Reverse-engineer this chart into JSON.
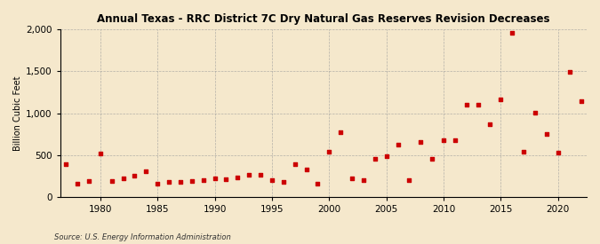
{
  "title": "Annual Texas - RRC District 7C Dry Natural Gas Reserves Revision Decreases",
  "ylabel": "Billion Cubic Feet",
  "source": "Source: U.S. Energy Information Administration",
  "xlim": [
    1976.5,
    2022.5
  ],
  "ylim": [
    0,
    2000
  ],
  "yticks": [
    0,
    500,
    1000,
    1500,
    2000
  ],
  "xticks": [
    1980,
    1985,
    1990,
    1995,
    2000,
    2005,
    2010,
    2015,
    2020
  ],
  "background_color": "#f5e8cc",
  "marker_color": "#cc0000",
  "data": {
    "years": [
      1977,
      1978,
      1979,
      1980,
      1981,
      1982,
      1983,
      1984,
      1985,
      1986,
      1987,
      1988,
      1989,
      1990,
      1991,
      1992,
      1993,
      1994,
      1995,
      1996,
      1997,
      1998,
      1999,
      2000,
      2001,
      2002,
      2003,
      2004,
      2005,
      2006,
      2007,
      2008,
      2009,
      2010,
      2011,
      2012,
      2013,
      2014,
      2015,
      2016,
      2017,
      2018,
      2019,
      2020,
      2021,
      2022
    ],
    "values": [
      390,
      160,
      185,
      520,
      185,
      215,
      250,
      300,
      155,
      175,
      175,
      185,
      200,
      220,
      210,
      235,
      260,
      265,
      200,
      175,
      385,
      330,
      155,
      540,
      770,
      220,
      195,
      455,
      490,
      620,
      195,
      660,
      450,
      675,
      675,
      1100,
      1100,
      870,
      1165,
      1960,
      535,
      1010,
      755,
      530,
      1490,
      1145
    ]
  }
}
